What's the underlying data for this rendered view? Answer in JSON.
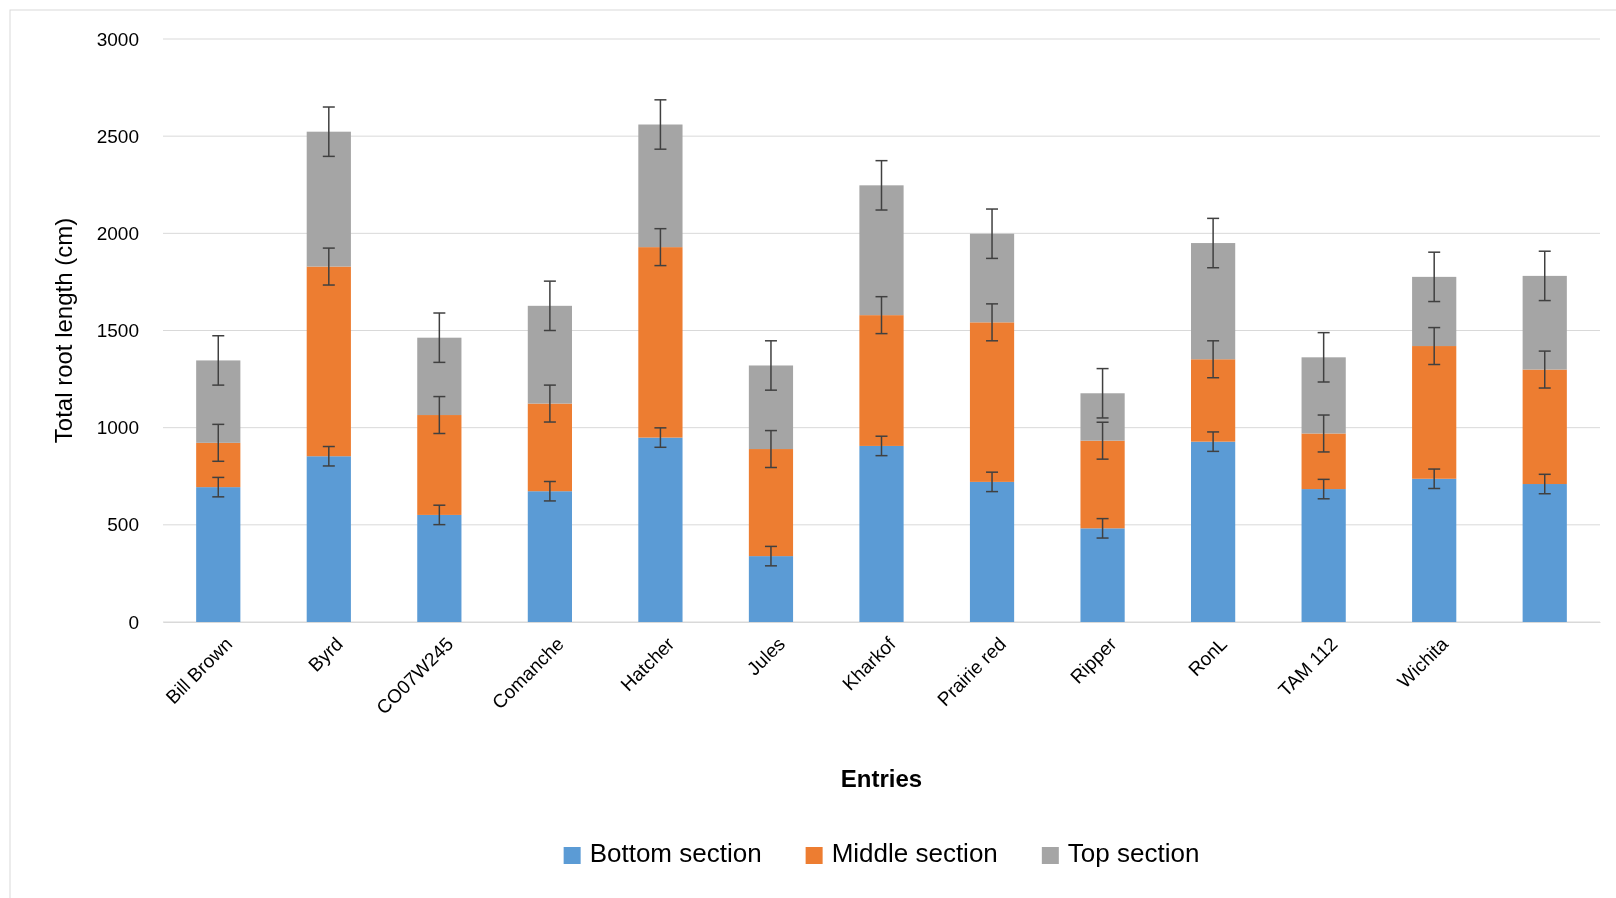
{
  "chart_data": {
    "type": "bar",
    "stacked": true,
    "xlabel": "Entries",
    "ylabel": "Total root length (cm)",
    "categories": [
      "Bill Brown",
      "Byrd",
      "CO07W245",
      "Comanche",
      "Hatcher",
      "Jules",
      "Kharkof",
      "Prairie red",
      "Ripper",
      "RonL",
      "TAM 112",
      "Wichita",
      null
    ],
    "series": [
      {
        "name": "Bottom section",
        "color": "#5b9bd5",
        "values": [
          694,
          853,
          551,
          673,
          949,
          339,
          906,
          721,
          482,
          928,
          684,
          737,
          710
        ],
        "errors": [
          50,
          50,
          50,
          50,
          50,
          50,
          50,
          50,
          50,
          50,
          50,
          50,
          50
        ]
      },
      {
        "name": "Middle section",
        "color": "#ed7d31",
        "values": [
          228,
          976,
          514,
          451,
          980,
          551,
          673,
          821,
          451,
          424,
          286,
          683,
          589
        ],
        "errors": [
          95,
          95,
          95,
          95,
          95,
          95,
          95,
          95,
          95,
          95,
          95,
          95,
          95
        ]
      },
      {
        "name": "Top section",
        "color": "#a5a5a5",
        "values": [
          424,
          694,
          398,
          503,
          631,
          430,
          668,
          456,
          244,
          598,
          392,
          356,
          482
        ],
        "errors": [
          127,
          127,
          127,
          127,
          127,
          127,
          127,
          127,
          127,
          127,
          127,
          127,
          127
        ]
      }
    ],
    "ylim": [
      0,
      3000
    ],
    "yticks": [
      0,
      500,
      1000,
      1500,
      2000,
      2500,
      3000
    ],
    "grid": "y",
    "legend": "bottom"
  }
}
